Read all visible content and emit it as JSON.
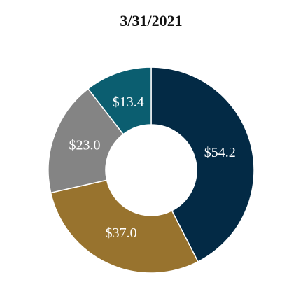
{
  "chart_data": {
    "type": "donut",
    "title": "3/31/2021",
    "categories": [
      null,
      null,
      null,
      null
    ],
    "values": [
      54.2,
      37.0,
      23.0,
      13.4
    ],
    "value_labels": [
      "$54.2",
      "$37.0",
      "$23.0",
      "$13.4"
    ],
    "colors": [
      "#032a45",
      "#98732e",
      "#848484",
      "#0b5e70"
    ]
  }
}
